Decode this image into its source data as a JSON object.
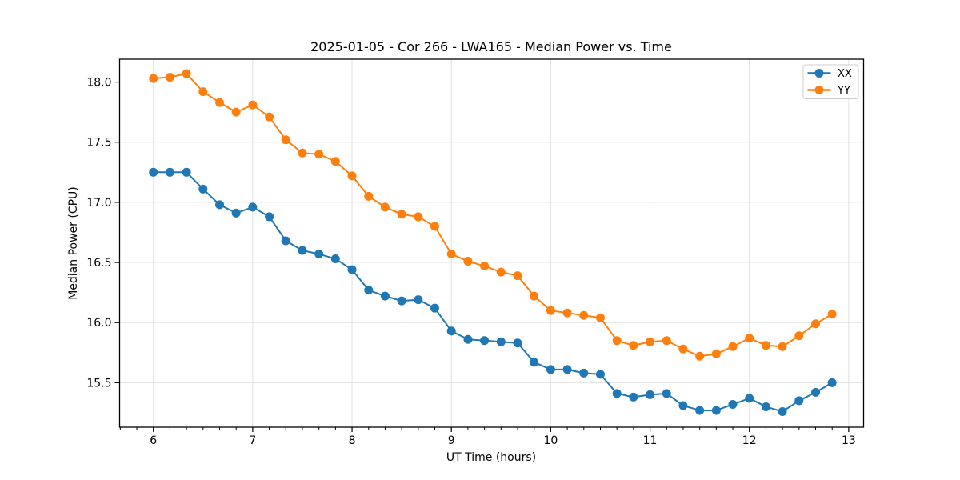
{
  "figure": {
    "background": "#ffffff",
    "text_color": "#000000",
    "grid_color": "#e0e0e0",
    "spine_color": "#000000",
    "legend_border_color": "#cccccc"
  },
  "chart_data": {
    "type": "line",
    "title": "2025-01-05 - Cor 266 - LWA165 - Median Power vs. Time",
    "xlabel": "UT Time (hours)",
    "ylabel": "Median Power (CPU)",
    "xlim": [
      5.66,
      13.15
    ],
    "ylim": [
      15.13,
      18.19
    ],
    "xticks": [
      6,
      7,
      8,
      9,
      10,
      11,
      12,
      13
    ],
    "xtick_labels": [
      "6",
      "7",
      "8",
      "9",
      "10",
      "11",
      "12",
      "13"
    ],
    "yticks": [
      15.5,
      16.0,
      16.5,
      17.0,
      17.5,
      18.0
    ],
    "ytick_labels": [
      "15.5",
      "16.0",
      "16.5",
      "17.0",
      "17.5",
      "18.0"
    ],
    "x_minor_step_hours": 0.16667,
    "grid": "major-both-axes",
    "legend_position": "upper right",
    "x": [
      6.0,
      6.167,
      6.333,
      6.5,
      6.667,
      6.833,
      7.0,
      7.167,
      7.333,
      7.5,
      7.667,
      7.833,
      8.0,
      8.167,
      8.333,
      8.5,
      8.667,
      8.833,
      9.0,
      9.167,
      9.333,
      9.5,
      9.667,
      9.833,
      10.0,
      10.167,
      10.333,
      10.5,
      10.667,
      10.833,
      11.0,
      11.167,
      11.333,
      11.5,
      11.667,
      11.833,
      12.0,
      12.167,
      12.333,
      12.5,
      12.667,
      12.833
    ],
    "series": [
      {
        "name": "XX",
        "color": "#1f77b4",
        "values": [
          17.25,
          17.25,
          17.25,
          17.11,
          16.98,
          16.91,
          16.96,
          16.88,
          16.68,
          16.6,
          16.57,
          16.53,
          16.44,
          16.27,
          16.22,
          16.18,
          16.19,
          16.12,
          15.93,
          15.86,
          15.85,
          15.84,
          15.83,
          15.67,
          15.61,
          15.61,
          15.58,
          15.57,
          15.41,
          15.38,
          15.4,
          15.41,
          15.31,
          15.27,
          15.27,
          15.32,
          15.37,
          15.3,
          15.26,
          15.35,
          15.42,
          15.5
        ]
      },
      {
        "name": "YY",
        "color": "#ff7f0e",
        "values": [
          18.03,
          18.04,
          18.07,
          17.92,
          17.83,
          17.75,
          17.81,
          17.71,
          17.52,
          17.41,
          17.4,
          17.34,
          17.22,
          17.05,
          16.96,
          16.9,
          16.88,
          16.8,
          16.57,
          16.51,
          16.47,
          16.42,
          16.39,
          16.22,
          16.1,
          16.08,
          16.06,
          16.04,
          15.85,
          15.81,
          15.84,
          15.85,
          15.78,
          15.72,
          15.74,
          15.8,
          15.87,
          15.81,
          15.8,
          15.89,
          15.99,
          16.07
        ]
      }
    ]
  }
}
